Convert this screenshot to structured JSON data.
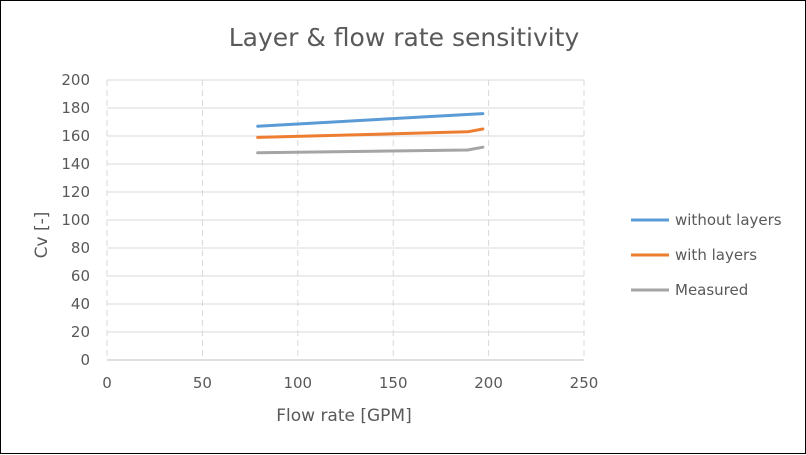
{
  "chart_data": {
    "type": "line",
    "title": "Layer & flow rate sensitivity",
    "xlabel": "Flow rate [GPM]",
    "ylabel": "Cv [-]",
    "xlim": [
      0,
      250
    ],
    "ylim": [
      0,
      200
    ],
    "xticks": [
      "0",
      "50",
      "100",
      "150",
      "200",
      "250"
    ],
    "yticks": [
      "0",
      "20",
      "40",
      "60",
      "80",
      "100",
      "120",
      "140",
      "160",
      "180",
      "200"
    ],
    "grid": {
      "vertical": "dashed",
      "horizontal": "solid"
    },
    "legend_position": "right",
    "series": [
      {
        "name": "without layers",
        "color": "#5B9BD5",
        "x": [
          79,
          197
        ],
        "y": [
          167,
          176
        ]
      },
      {
        "name": "with layers",
        "color": "#ED7D31",
        "x": [
          79,
          189,
          197
        ],
        "y": [
          159,
          163,
          165
        ]
      },
      {
        "name": "Measured",
        "color": "#A5A5A5",
        "x": [
          79,
          189,
          197
        ],
        "y": [
          148,
          150,
          152
        ]
      }
    ]
  }
}
